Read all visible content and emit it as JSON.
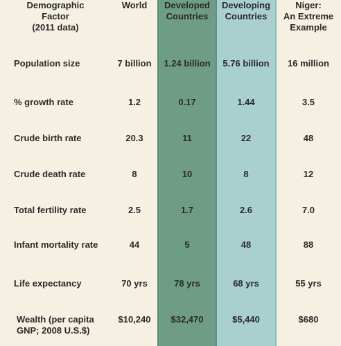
{
  "header": {
    "factor": [
      "Demographic",
      "Factor",
      "(2011 data)"
    ],
    "world": [
      "World"
    ],
    "developed": [
      "Developed",
      "Countries"
    ],
    "developing": [
      "Developing",
      "Countries"
    ],
    "niger": [
      "Niger:",
      "An Extreme",
      "Example"
    ]
  },
  "rows": [
    {
      "label": "Population size",
      "world": "7 billion",
      "developed": "1.24 billion",
      "developing": "5.76 billion",
      "niger": "16 million"
    },
    {
      "label": "% growth rate",
      "world": "1.2",
      "developed": "0.17",
      "developing": "1.44",
      "niger": "3.5"
    },
    {
      "label": "Crude birth rate",
      "world": "20.3",
      "developed": "11",
      "developing": "22",
      "niger": "48"
    },
    {
      "label": "Crude death rate",
      "world": "8",
      "developed": "10",
      "developing": "8",
      "niger": "12"
    },
    {
      "label": "Total fertility rate",
      "world": "2.5",
      "developed": "1.7",
      "developing": "2.6",
      "niger": "7.0"
    },
    {
      "label": "Infant mortality rate",
      "world": "44",
      "developed": "5",
      "developing": "48",
      "niger": "88"
    },
    {
      "label": "Life expectancy",
      "world": "70 yrs",
      "developed": "78 yrs",
      "developing": "68 yrs",
      "niger": "55 yrs"
    },
    {
      "label": "Wealth (per capita GNP; 2008 U.S.$)",
      "world": "$10,240",
      "developed": "$32,470",
      "developing": "$5,440",
      "niger": "$680"
    }
  ],
  "colors": {
    "background": "#f5f0e2",
    "developed_band": "#6e9c85",
    "developing_band": "#a9cfcf",
    "text": "#2a2a2a"
  }
}
